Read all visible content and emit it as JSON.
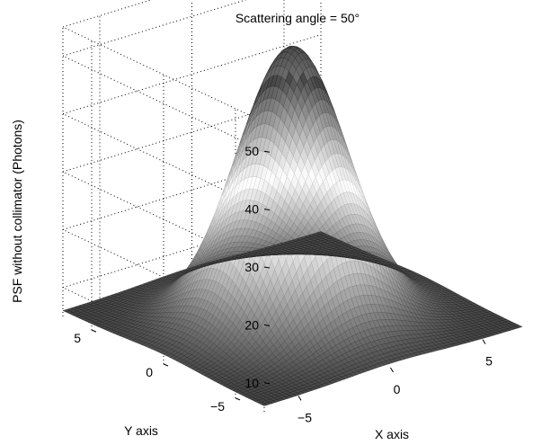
{
  "chart_data": {
    "type": "surface",
    "title": "Scattering angle = 50°",
    "xlabel": "X axis",
    "ylabel": "Y axis",
    "zlabel": "PSF without collimator (Photons)",
    "x_ticks": [
      -5,
      0,
      5
    ],
    "y_ticks": [
      -5,
      0,
      5
    ],
    "z_ticks": [
      10,
      20,
      30,
      40,
      50
    ],
    "xlim": [
      -7,
      7
    ],
    "ylim": [
      -7,
      7
    ],
    "zlim": [
      5,
      55
    ],
    "peak": {
      "x": 0,
      "y": 0,
      "z": 53
    },
    "corner_value": 6,
    "grid": "dotted",
    "colormap": "gray"
  }
}
